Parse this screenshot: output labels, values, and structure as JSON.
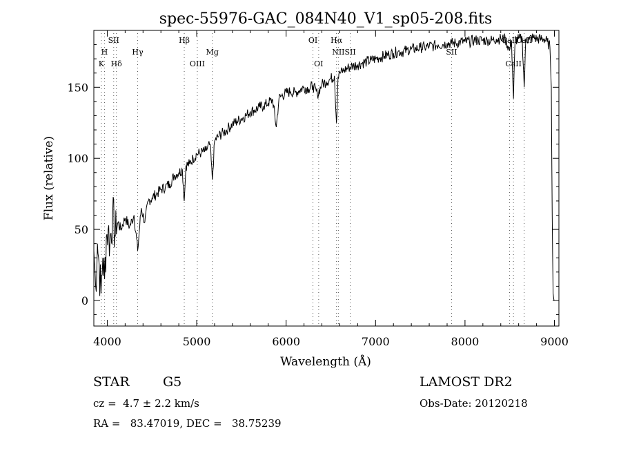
{
  "chart_data": {
    "type": "line",
    "title": "spec-55976-GAC_084N40_V1_sp05-208.fits",
    "xlabel": "Wavelength (Å)",
    "ylabel": "Flux (relative)",
    "xlim": [
      3850,
      9050
    ],
    "ylim": [
      -18,
      190
    ],
    "x_ticks": [
      4000,
      5000,
      6000,
      7000,
      8000,
      9000
    ],
    "y_ticks": [
      0,
      50,
      100,
      150
    ],
    "grid": false,
    "series": [
      {
        "x": [
          3850,
          3870,
          3890,
          3910,
          3930,
          3950,
          3970,
          3990,
          4010,
          4030,
          4060,
          4090,
          4120,
          4150,
          4200,
          4250,
          4300,
          4340,
          4380,
          4420,
          4460,
          4500,
          4550,
          4600,
          4650,
          4700,
          4750,
          4800,
          4840,
          4861,
          4880,
          4920,
          4960,
          5000,
          5050,
          5100,
          5150,
          5175,
          5200,
          5250,
          5300,
          5350,
          5400,
          5450,
          5500,
          5550,
          5600,
          5650,
          5700,
          5750,
          5800,
          5850,
          5890,
          5920,
          5950,
          6000,
          6050,
          6100,
          6150,
          6200,
          6250,
          6300,
          6350,
          6400,
          6450,
          6500,
          6540,
          6563,
          6580,
          6600,
          6650,
          6700,
          6750,
          6800,
          6850,
          6900,
          6950,
          7000,
          7050,
          7100,
          7150,
          7200,
          7250,
          7300,
          7350,
          7400,
          7450,
          7500,
          7550,
          7600,
          7650,
          7700,
          7750,
          7800,
          7850,
          7900,
          7950,
          8000,
          8050,
          8100,
          8150,
          8200,
          8250,
          8300,
          8350,
          8400,
          8450,
          8498,
          8520,
          8542,
          8560,
          8600,
          8640,
          8662,
          8680,
          8720,
          8760,
          8800,
          8840,
          8880,
          8920,
          8950,
          8965,
          8975,
          8985,
          8995,
          9005
        ],
        "values": [
          35,
          10,
          40,
          25,
          5,
          30,
          15,
          45,
          50,
          40,
          60,
          45,
          55,
          50,
          58,
          52,
          60,
          35,
          65,
          55,
          70,
          72,
          75,
          78,
          80,
          82,
          88,
          90,
          92,
          70,
          95,
          96,
          100,
          103,
          104,
          105,
          110,
          85,
          112,
          116,
          118,
          121,
          124,
          126,
          128,
          130,
          133,
          134,
          136,
          137,
          139,
          141,
          122,
          142,
          144,
          146,
          147,
          146,
          148,
          150,
          149,
          151,
          145,
          152,
          154,
          156,
          158,
          125,
          157,
          160,
          162,
          164,
          165,
          166,
          167,
          168,
          169,
          170,
          171,
          172,
          173,
          174,
          175,
          175,
          176,
          177,
          177,
          178,
          178,
          179,
          179,
          180,
          180,
          181,
          181,
          181,
          182,
          182,
          182,
          183,
          183,
          183,
          183,
          183,
          184,
          184,
          184,
          176,
          183,
          142,
          183,
          184,
          184,
          150,
          184,
          184,
          185,
          184,
          184,
          184,
          182,
          178,
          150,
          60,
          5,
          0,
          0
        ]
      }
    ],
    "annotations": [
      {
        "label": "K",
        "wavelength": 3934,
        "row": 3
      },
      {
        "label": "H",
        "wavelength": 3969,
        "row": 2
      },
      {
        "label": "SII",
        "wavelength": 4072,
        "row": 1
      },
      {
        "label": "Hδ",
        "wavelength": 4102,
        "row": 3
      },
      {
        "label": "Hγ",
        "wavelength": 4340,
        "row": 2
      },
      {
        "label": "Hβ",
        "wavelength": 4861,
        "row": 1
      },
      {
        "label": "OIII",
        "wavelength": 5007,
        "row": 3
      },
      {
        "label": "Mg",
        "wavelength": 5175,
        "row": 2
      },
      {
        "label": "OI",
        "wavelength": 6300,
        "row": 1
      },
      {
        "label": "OI",
        "wavelength": 6364,
        "row": 3
      },
      {
        "label": "Hα",
        "wavelength": 6563,
        "row": 1
      },
      {
        "label": "NII",
        "wavelength": 6584,
        "row": 2
      },
      {
        "label": "SII",
        "wavelength": 6717,
        "row": 2
      },
      {
        "label": "SII",
        "wavelength": 7850,
        "row": 2
      },
      {
        "label": "CaII",
        "wavelength": 8498,
        "row": 1
      },
      {
        "label": "CaII",
        "wavelength": 8542,
        "row": 3
      },
      {
        "label": "CaII",
        "wavelength": 8662,
        "row": 1
      }
    ]
  },
  "info": {
    "class": "STAR",
    "subclass": "G5",
    "redshift": "cz =  4.7 ± 2.2 km/s",
    "coords": "RA =   83.47019, DEC =   38.75239",
    "survey": "LAMOST DR2",
    "obs_date": "Obs-Date: 20120218"
  },
  "colors": {
    "line": "#000000",
    "background": "#ffffff"
  }
}
